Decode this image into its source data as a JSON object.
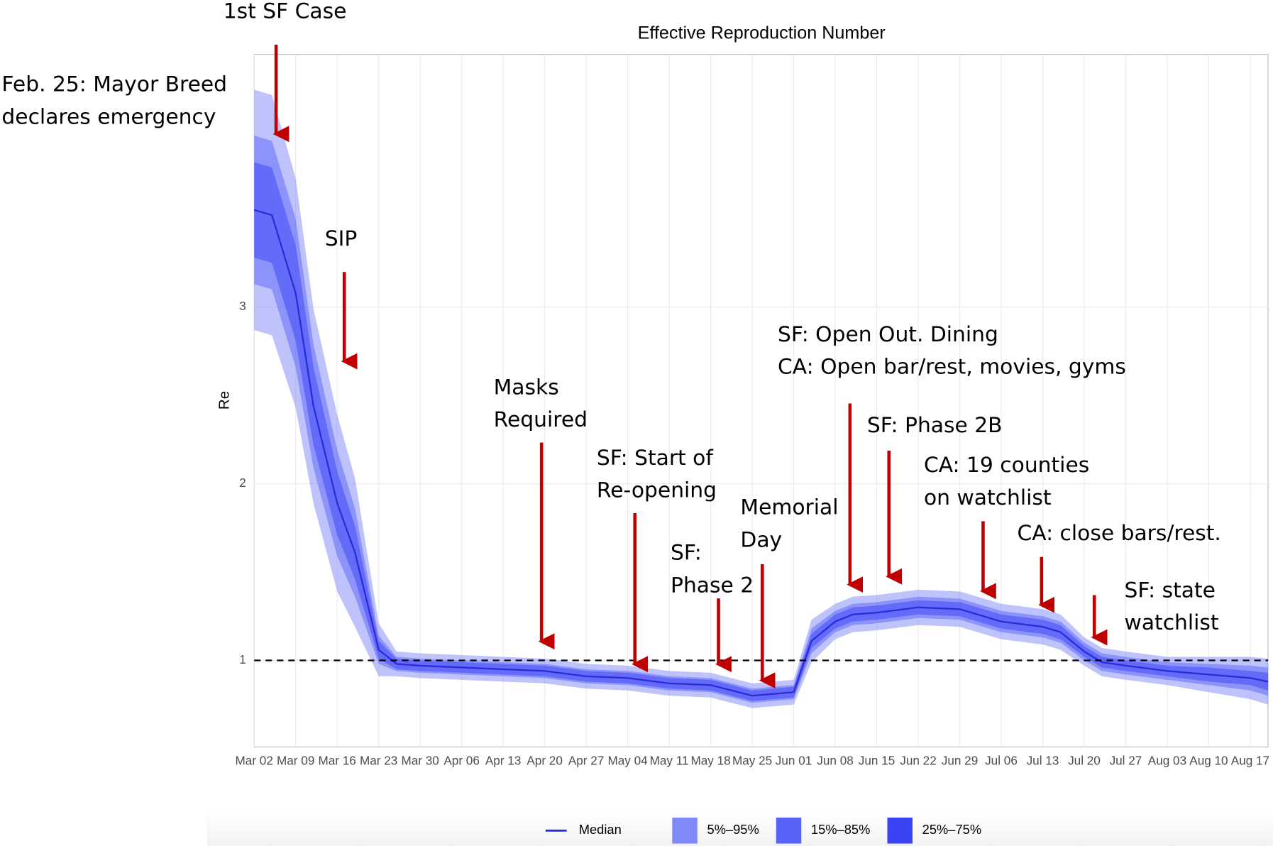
{
  "chart_data": {
    "type": "band-line",
    "title": "Effective Reproduction Number",
    "ylabel": "Re",
    "x": [
      "Mar 02",
      "Mar 05",
      "Mar 09",
      "Mar 12",
      "Mar 16",
      "Mar 19",
      "Mar 23",
      "Mar 26",
      "Mar 30",
      "Apr 06",
      "Apr 13",
      "Apr 20",
      "Apr 27",
      "May 04",
      "May 11",
      "May 18",
      "May 25",
      "Jun 01",
      "Jun 04",
      "Jun 08",
      "Jun 11",
      "Jun 15",
      "Jun 22",
      "Jun 29",
      "Jul 06",
      "Jul 13",
      "Jul 16",
      "Jul 20",
      "Jul 23",
      "Jul 27",
      "Aug 03",
      "Aug 10",
      "Aug 17",
      "Aug 20"
    ],
    "series": [
      {
        "name": "Median",
        "color": "#2b2bd9",
        "values": [
          3.55,
          3.52,
          3.08,
          2.44,
          1.89,
          1.61,
          1.06,
          0.98,
          0.97,
          0.96,
          0.95,
          0.94,
          0.91,
          0.9,
          0.87,
          0.86,
          0.8,
          0.82,
          1.11,
          1.22,
          1.26,
          1.27,
          1.3,
          1.29,
          1.22,
          1.19,
          1.16,
          1.05,
          0.99,
          0.97,
          0.94,
          0.92,
          0.9,
          0.88
        ]
      }
    ],
    "bands": [
      {
        "name": "5%–95%",
        "color": "#8088fa",
        "lower": [
          2.87,
          2.84,
          2.43,
          1.89,
          1.39,
          1.19,
          0.91,
          0.91,
          0.9,
          0.89,
          0.88,
          0.87,
          0.84,
          0.83,
          0.8,
          0.79,
          0.73,
          0.75,
          0.99,
          1.12,
          1.16,
          1.17,
          1.2,
          1.19,
          1.12,
          1.09,
          1.06,
          0.97,
          0.91,
          0.89,
          0.86,
          0.82,
          0.78,
          0.75
        ],
        "upper": [
          4.23,
          4.2,
          3.73,
          2.99,
          2.39,
          2.03,
          1.21,
          1.05,
          1.04,
          1.03,
          1.02,
          1.01,
          0.98,
          0.97,
          0.94,
          0.93,
          0.87,
          0.89,
          1.23,
          1.32,
          1.36,
          1.37,
          1.4,
          1.39,
          1.32,
          1.29,
          1.26,
          1.13,
          1.07,
          1.05,
          1.02,
          1.02,
          1.02,
          1.01
        ]
      },
      {
        "name": "15%–85%",
        "color": "#5a63f8",
        "lower": [
          3.13,
          3.1,
          2.66,
          2.09,
          1.59,
          1.36,
          0.98,
          0.94,
          0.93,
          0.92,
          0.91,
          0.9,
          0.87,
          0.86,
          0.83,
          0.82,
          0.76,
          0.78,
          1.04,
          1.16,
          1.2,
          1.21,
          1.24,
          1.23,
          1.16,
          1.13,
          1.1,
          1.0,
          0.94,
          0.92,
          0.89,
          0.86,
          0.83,
          0.8
        ],
        "upper": [
          3.97,
          3.94,
          3.5,
          2.79,
          2.19,
          1.86,
          1.14,
          1.02,
          1.01,
          1.0,
          0.99,
          0.98,
          0.95,
          0.94,
          0.91,
          0.9,
          0.84,
          0.86,
          1.18,
          1.28,
          1.32,
          1.33,
          1.36,
          1.35,
          1.28,
          1.25,
          1.22,
          1.1,
          1.04,
          1.02,
          0.99,
          0.98,
          0.97,
          0.96
        ]
      },
      {
        "name": "25%–75%",
        "color": "#3a44f5",
        "lower": [
          3.28,
          3.25,
          2.81,
          2.22,
          1.71,
          1.46,
          1.01,
          0.95,
          0.94,
          0.93,
          0.92,
          0.91,
          0.88,
          0.87,
          0.84,
          0.83,
          0.77,
          0.79,
          1.07,
          1.18,
          1.22,
          1.23,
          1.26,
          1.25,
          1.18,
          1.15,
          1.12,
          1.02,
          0.96,
          0.94,
          0.91,
          0.88,
          0.86,
          0.83
        ],
        "upper": [
          3.82,
          3.79,
          3.35,
          2.66,
          2.07,
          1.76,
          1.11,
          1.01,
          1.0,
          0.99,
          0.98,
          0.97,
          0.94,
          0.93,
          0.9,
          0.89,
          0.83,
          0.85,
          1.15,
          1.26,
          1.3,
          1.31,
          1.34,
          1.33,
          1.26,
          1.23,
          1.2,
          1.08,
          1.02,
          1.0,
          0.97,
          0.96,
          0.94,
          0.93
        ]
      }
    ],
    "reference_line": 1,
    "xlim": [
      "Mar 02",
      "Aug 20"
    ],
    "xticks": [
      "Mar 02",
      "Mar 09",
      "Mar 16",
      "Mar 23",
      "Mar 30",
      "Apr 06",
      "Apr 13",
      "Apr 20",
      "Apr 27",
      "May 04",
      "May 11",
      "May 18",
      "May 25",
      "Jun 01",
      "Jun 08",
      "Jun 15",
      "Jun 22",
      "Jun 29",
      "Jul 06",
      "Jul 13",
      "Jul 20",
      "Jul 27",
      "Aug 03",
      "Aug 10",
      "Aug 17"
    ],
    "ylim": [
      0.51,
      4.43
    ],
    "yticks": [
      1,
      2,
      3
    ],
    "grid": true,
    "legend": "bottom",
    "annotations": [
      {
        "lines": [
          "1st SF Case"
        ]
      },
      {
        "lines": [
          "Feb. 25: Mayor Breed",
          "declares emergency"
        ]
      },
      {
        "lines": [
          "SIP"
        ]
      },
      {
        "lines": [
          "Masks",
          "Required"
        ]
      },
      {
        "lines": [
          "SF: Start of",
          "Re-opening"
        ]
      },
      {
        "lines": [
          "SF:",
          "Phase 2"
        ]
      },
      {
        "lines": [
          "Memorial",
          "Day"
        ]
      },
      {
        "lines": [
          "SF: Open Out. Dining",
          "CA: Open bar/rest, movies, gyms"
        ]
      },
      {
        "lines": [
          "SF: Phase 2B"
        ]
      },
      {
        "lines": [
          "CA: 19 counties",
          "on watchlist"
        ]
      },
      {
        "lines": [
          "CA: close bars/rest."
        ]
      },
      {
        "lines": [
          "SF: state",
          "watchlist"
        ]
      }
    ]
  }
}
